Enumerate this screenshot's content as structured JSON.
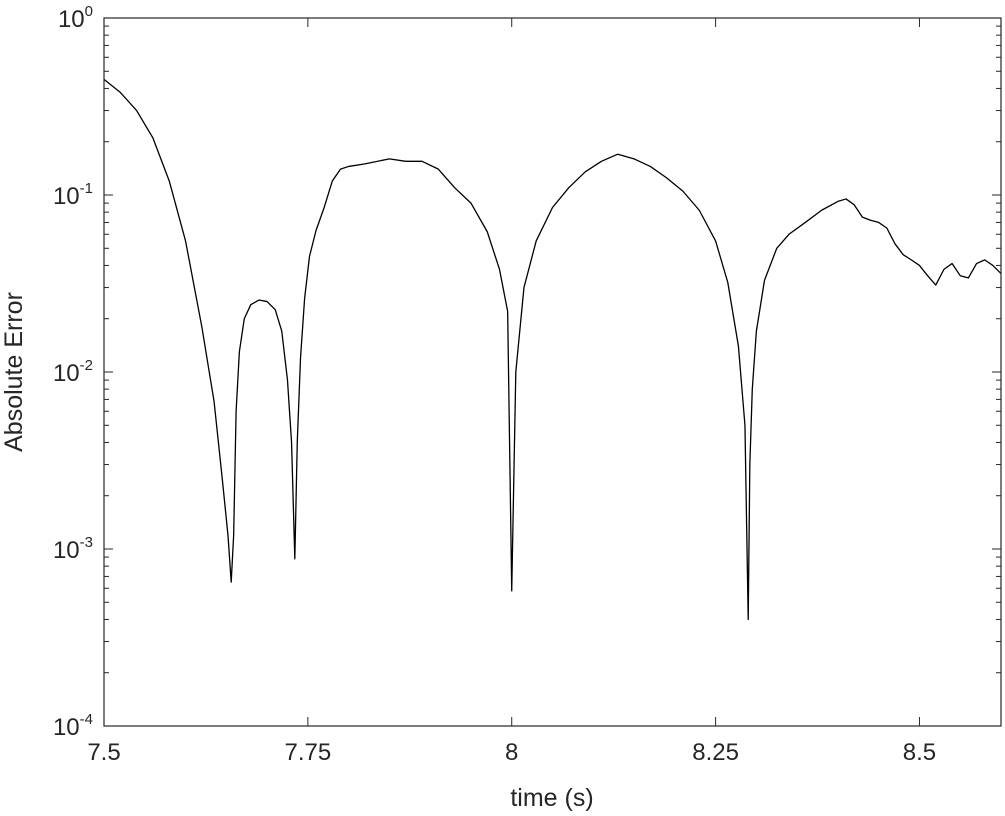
{
  "chart_data": {
    "type": "line",
    "title": "",
    "xlabel": "time (s)",
    "ylabel": "Absolute Error",
    "xlim": [
      7.5,
      8.6
    ],
    "ylim": [
      0.0001,
      1
    ],
    "yscale": "log",
    "grid": false,
    "box": true,
    "line_color": "#000000",
    "x_ticks": [
      7.5,
      7.75,
      8,
      8.25,
      8.5
    ],
    "x_tick_labels": [
      "7.5",
      "7.75",
      "8",
      "8.25",
      "8.5"
    ],
    "y_ticks": [
      0.0001,
      0.001,
      0.01,
      0.1,
      1
    ],
    "y_tick_labels": [
      {
        "base": "10",
        "exp": "-4"
      },
      {
        "base": "10",
        "exp": "-3"
      },
      {
        "base": "10",
        "exp": "-2"
      },
      {
        "base": "10",
        "exp": "-1"
      },
      {
        "base": "10",
        "exp": "0"
      }
    ],
    "series": [
      {
        "x": [
          7.5,
          7.52,
          7.54,
          7.56,
          7.58,
          7.6,
          7.62,
          7.635,
          7.645,
          7.652,
          7.656,
          7.659,
          7.662,
          7.666,
          7.672,
          7.68,
          7.69,
          7.7,
          7.71,
          7.718,
          7.725,
          7.73,
          7.734,
          7.737,
          7.741,
          7.746,
          7.752,
          7.76,
          7.77,
          7.78,
          7.79,
          7.8,
          7.82,
          7.85,
          7.87,
          7.89,
          7.91,
          7.93,
          7.95,
          7.97,
          7.985,
          7.995,
          8.0,
          8.005,
          8.015,
          8.03,
          8.05,
          8.07,
          8.09,
          8.11,
          8.13,
          8.15,
          8.17,
          8.19,
          8.21,
          8.23,
          8.25,
          8.265,
          8.278,
          8.286,
          8.29,
          8.292,
          8.295,
          8.3,
          8.31,
          8.325,
          8.34,
          8.36,
          8.38,
          8.4,
          8.41,
          8.42,
          8.43,
          8.44,
          8.45,
          8.46,
          8.47,
          8.48,
          8.49,
          8.5,
          8.51,
          8.52,
          8.53,
          8.54,
          8.55,
          8.56,
          8.57,
          8.58,
          8.59,
          8.6
        ],
        "y": [
          0.45,
          0.38,
          0.3,
          0.21,
          0.12,
          0.055,
          0.018,
          0.0068,
          0.0025,
          0.0012,
          0.00065,
          0.0012,
          0.006,
          0.013,
          0.02,
          0.024,
          0.0255,
          0.025,
          0.0225,
          0.017,
          0.009,
          0.004,
          0.00088,
          0.004,
          0.012,
          0.026,
          0.045,
          0.063,
          0.085,
          0.12,
          0.14,
          0.145,
          0.15,
          0.16,
          0.155,
          0.155,
          0.14,
          0.11,
          0.09,
          0.062,
          0.038,
          0.022,
          0.00058,
          0.01,
          0.03,
          0.055,
          0.085,
          0.11,
          0.135,
          0.155,
          0.17,
          0.16,
          0.145,
          0.125,
          0.105,
          0.082,
          0.055,
          0.032,
          0.014,
          0.005,
          0.0004,
          0.003,
          0.008,
          0.017,
          0.033,
          0.05,
          0.06,
          0.07,
          0.082,
          0.092,
          0.095,
          0.088,
          0.075,
          0.072,
          0.07,
          0.065,
          0.053,
          0.046,
          0.043,
          0.04,
          0.035,
          0.031,
          0.038,
          0.041,
          0.035,
          0.034,
          0.041,
          0.043,
          0.04,
          0.036
        ]
      }
    ]
  }
}
